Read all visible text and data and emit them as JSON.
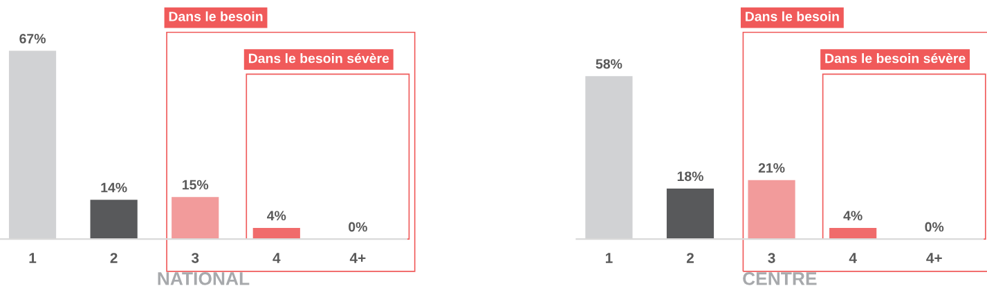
{
  "chart_data": [
    {
      "type": "bar",
      "xlabel": "NATIONAL",
      "categories": [
        "1",
        "2",
        "3",
        "4",
        "4+"
      ],
      "values": [
        67,
        14,
        15,
        4,
        0
      ],
      "colors": [
        "#d1d2d4",
        "#58595b",
        "#f29b9b",
        "#f06b6b",
        "#f06b6b"
      ],
      "value_labels": [
        "67%",
        "14%",
        "15%",
        "4%",
        "0%"
      ],
      "annotations": [
        "Dans le besoin",
        "Dans le besoin sévère"
      ]
    },
    {
      "type": "bar",
      "xlabel": "CENTRE",
      "categories": [
        "1",
        "2",
        "3",
        "4",
        "4+"
      ],
      "values": [
        58,
        18,
        21,
        4,
        0
      ],
      "colors": [
        "#d1d2d4",
        "#58595b",
        "#f29b9b",
        "#f06b6b",
        "#f06b6b"
      ],
      "value_labels": [
        "58%",
        "18%",
        "21%",
        "4%",
        "0%"
      ],
      "annotations": [
        "Dans le besoin",
        "Dans le besoin sévère"
      ]
    }
  ]
}
